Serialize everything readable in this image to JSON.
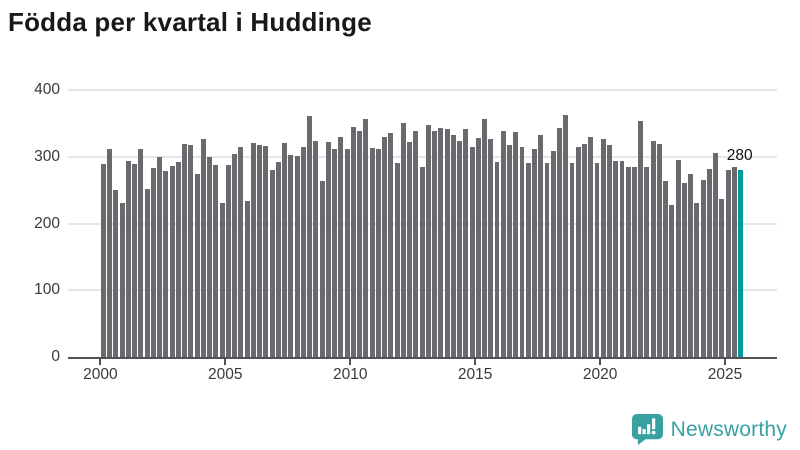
{
  "title": "Födda per kvartal i Huddinge",
  "footer": {
    "brand": "Newsworthy"
  },
  "colors": {
    "bar": "#6a6a6e",
    "highlight": "#00999f",
    "grid": "#e6e6e6",
    "axis": "#515156",
    "tick_text": "#3a3a3a",
    "title_text": "#191919",
    "logo": "#38a1a1"
  },
  "chart_data": {
    "type": "bar",
    "title": "Födda per kvartal i Huddinge",
    "xlabel": "",
    "ylabel": "",
    "ylim": [
      0,
      400
    ],
    "y_ticks": [
      "0",
      "100",
      "200",
      "300",
      "400"
    ],
    "y_tick_values": [
      0,
      100,
      200,
      300,
      400
    ],
    "x_tick_labels": [
      "2000",
      "2005",
      "2010",
      "2015",
      "2020",
      "2025"
    ],
    "x_tick_years": [
      2000,
      2005,
      2010,
      2015,
      2020,
      2025
    ],
    "start_year": 2000,
    "start_quarter": 1,
    "end_year": 2025,
    "end_quarter": 3,
    "grid": true,
    "legend": "none",
    "highlight_last_bar": true,
    "last_value_label": "280",
    "values": [
      289,
      311,
      250,
      230,
      293,
      289,
      312,
      251,
      283,
      299,
      279,
      286,
      292,
      319,
      318,
      274,
      326,
      300,
      288,
      231,
      288,
      304,
      314,
      233,
      321,
      317,
      316,
      280,
      292,
      320,
      302,
      301,
      314,
      361,
      323,
      264,
      322,
      311,
      329,
      311,
      344,
      338,
      357,
      313,
      312,
      329,
      335,
      290,
      351,
      322,
      339,
      284,
      348,
      339,
      343,
      342,
      333,
      324,
      341,
      314,
      328,
      357,
      327,
      292,
      338,
      318,
      337,
      315,
      291,
      312,
      333,
      291,
      309,
      343,
      363,
      290,
      314,
      319,
      330,
      290,
      326,
      317,
      294,
      294,
      285,
      284,
      354,
      284,
      323,
      319,
      264,
      228,
      295,
      260,
      274,
      230,
      265,
      281,
      305,
      236,
      280,
      285,
      280
    ]
  }
}
